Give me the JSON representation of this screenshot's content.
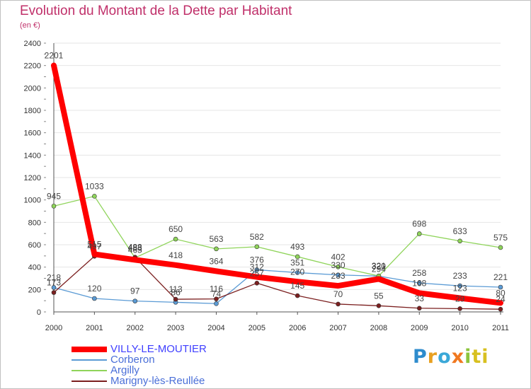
{
  "title": "Evolution du Montant de la Dette par Habitant",
  "subtitle": "(en €)",
  "logo": [
    "P",
    "r",
    "o",
    "x",
    "i",
    "ti"
  ],
  "chart_data": {
    "type": "line",
    "title": "Evolution du Montant de la Dette par Habitant",
    "ylabel": "(en €)",
    "xlabel": "",
    "ylim": [
      0,
      2400
    ],
    "yticks": [
      0,
      200,
      400,
      600,
      800,
      1000,
      1200,
      1400,
      1600,
      1800,
      2000,
      2200,
      2400
    ],
    "x": [
      "2000",
      "2001",
      "2002",
      "2003",
      "2004",
      "2005",
      "2006",
      "2007",
      "2008",
      "2009",
      "2010",
      "2011"
    ],
    "series": [
      {
        "name": "VILLY-LE-MOUTIER",
        "color": "#ff0000",
        "values": [
          2201,
          515,
          465,
          418,
          364,
          312,
          270,
          233,
          294,
          168,
          123,
          80
        ]
      },
      {
        "name": "Corberon",
        "color": "#5b9bd5",
        "values": [
          218,
          120,
          97,
          86,
          74,
          376,
          351,
          330,
          320,
          258,
          233,
          221
        ]
      },
      {
        "name": "Argilly",
        "color": "#8fd45a",
        "values": [
          945,
          1033,
          483,
          650,
          563,
          582,
          493,
          402,
          321,
          698,
          633,
          575
        ]
      },
      {
        "name": "Marigny-lès-Reullée",
        "color": "#7b1f1f",
        "values": [
          173,
          497,
          488,
          113,
          116,
          257,
          145,
          70,
          55,
          33,
          29,
          24
        ]
      }
    ]
  }
}
